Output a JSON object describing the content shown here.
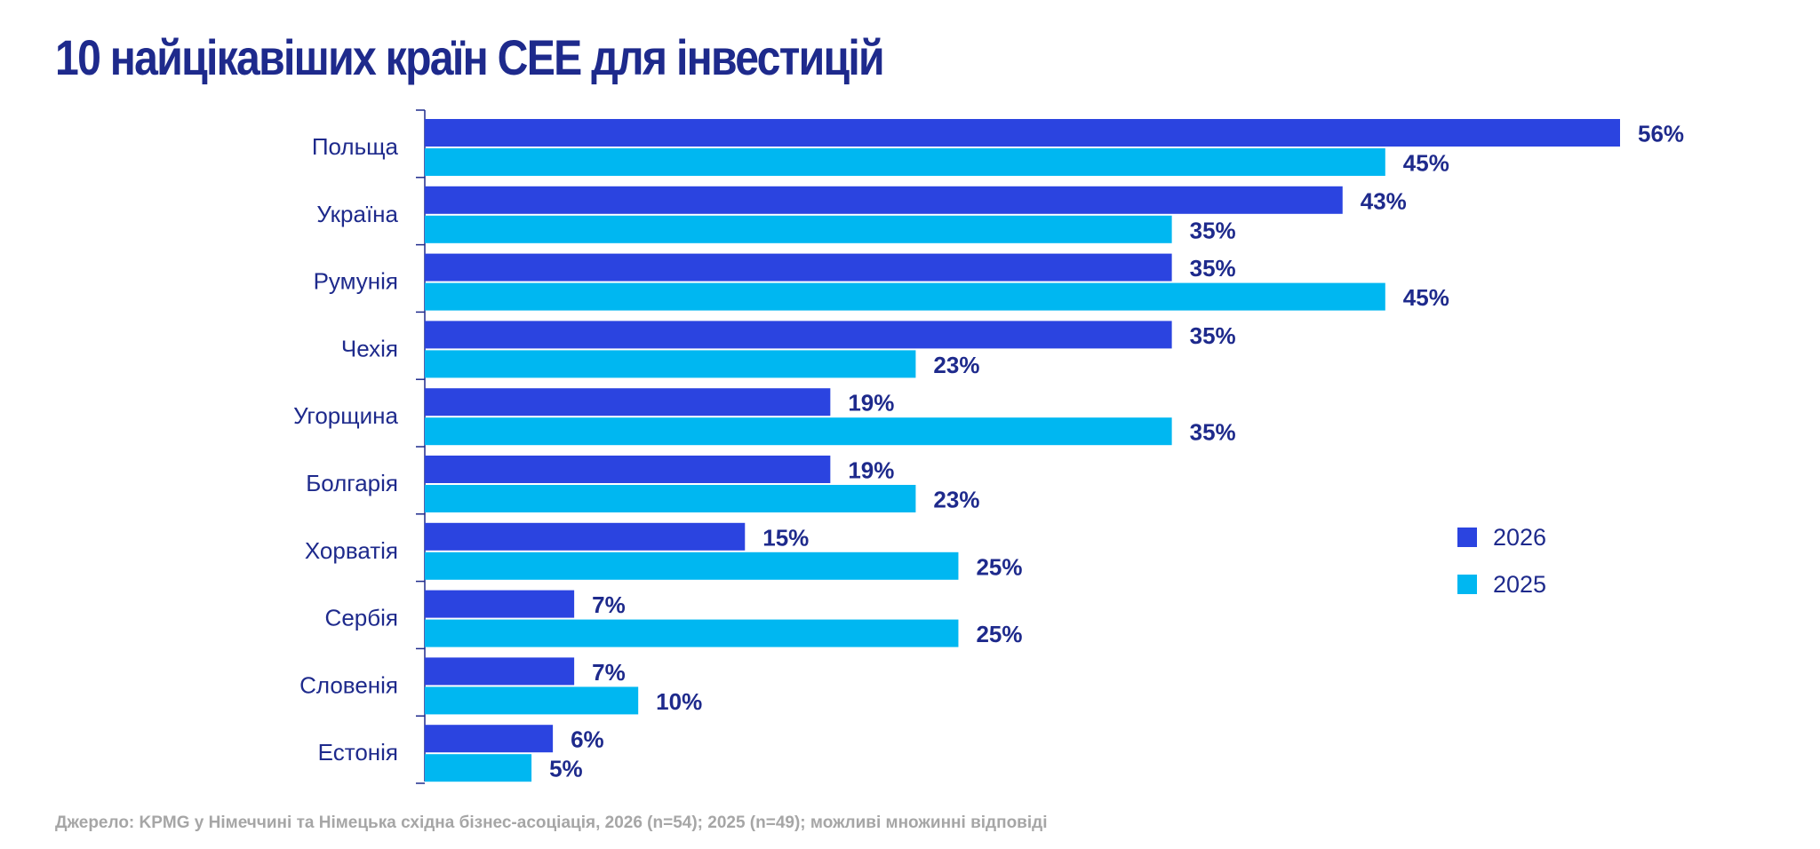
{
  "chart_data": {
    "type": "bar",
    "orientation": "horizontal",
    "title": "10 найцікавіших країн CEE для інвестицій",
    "categories": [
      "Польща",
      "Україна",
      "Румунія",
      "Чехія",
      "Угорщина",
      "Болгарія",
      "Хорватія",
      "Сербія",
      "Словенія",
      "Естонія"
    ],
    "series": [
      {
        "name": "2026",
        "color": "#2B44E0",
        "values": [
          56,
          43,
          35,
          35,
          19,
          19,
          15,
          7,
          7,
          6
        ]
      },
      {
        "name": "2025",
        "color": "#00B7F1",
        "values": [
          45,
          35,
          45,
          23,
          35,
          23,
          25,
          25,
          10,
          5
        ]
      }
    ],
    "value_suffix": "%",
    "xlim": [
      0,
      56
    ],
    "xaxis_visible": false,
    "grid": false,
    "legend_position": "right",
    "data_labels": true
  },
  "source_note": "Джерело: KPMG у Німеччині та Німецька східна бізнес-асоціація, 2026 (n=54); 2025 (n=49); можливі множинні відповіді",
  "colors": {
    "title": "#1E2A8C",
    "label": "#1E2A8C",
    "axis": "#1E2A8C",
    "source": "#A6A6A6"
  }
}
